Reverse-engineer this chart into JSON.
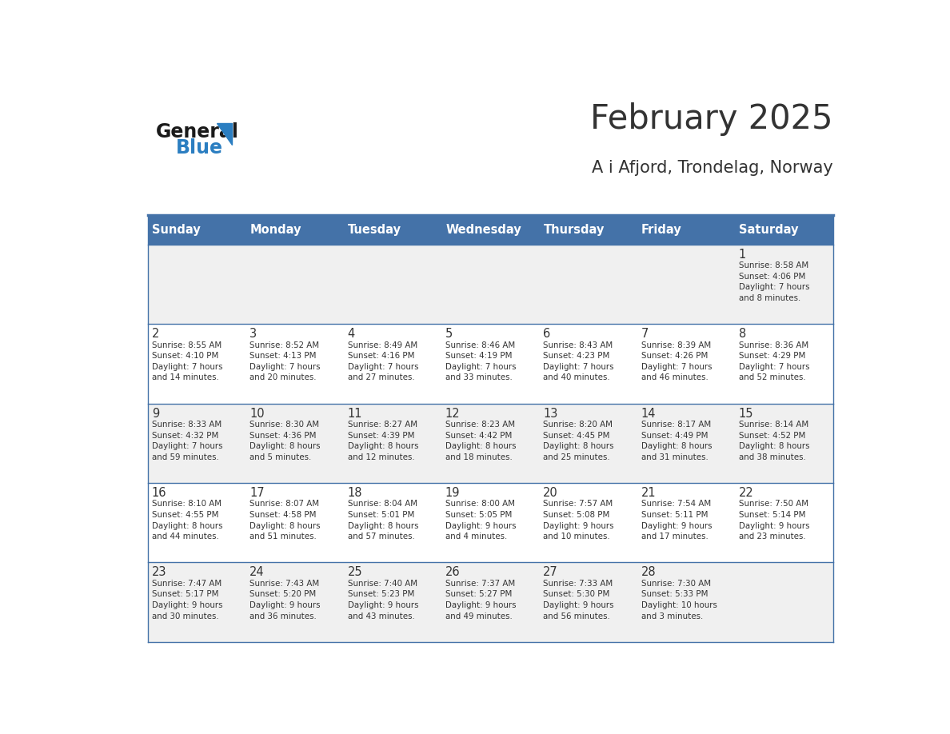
{
  "title": "February 2025",
  "subtitle": "A i Afjord, Trondelag, Norway",
  "days_of_week": [
    "Sunday",
    "Monday",
    "Tuesday",
    "Wednesday",
    "Thursday",
    "Friday",
    "Saturday"
  ],
  "header_bg": "#4472a8",
  "header_text": "#ffffff",
  "row_bg_odd": "#f0f0f0",
  "row_bg_even": "#ffffff",
  "separator_color": "#4472a8",
  "text_color": "#333333",
  "day_number_color": "#333333",
  "calendar_data": [
    [
      null,
      null,
      null,
      null,
      null,
      null,
      {
        "day": 1,
        "sunrise": "8:58 AM",
        "sunset": "4:06 PM",
        "daylight": "7 hours\nand 8 minutes."
      }
    ],
    [
      {
        "day": 2,
        "sunrise": "8:55 AM",
        "sunset": "4:10 PM",
        "daylight": "7 hours\nand 14 minutes."
      },
      {
        "day": 3,
        "sunrise": "8:52 AM",
        "sunset": "4:13 PM",
        "daylight": "7 hours\nand 20 minutes."
      },
      {
        "day": 4,
        "sunrise": "8:49 AM",
        "sunset": "4:16 PM",
        "daylight": "7 hours\nand 27 minutes."
      },
      {
        "day": 5,
        "sunrise": "8:46 AM",
        "sunset": "4:19 PM",
        "daylight": "7 hours\nand 33 minutes."
      },
      {
        "day": 6,
        "sunrise": "8:43 AM",
        "sunset": "4:23 PM",
        "daylight": "7 hours\nand 40 minutes."
      },
      {
        "day": 7,
        "sunrise": "8:39 AM",
        "sunset": "4:26 PM",
        "daylight": "7 hours\nand 46 minutes."
      },
      {
        "day": 8,
        "sunrise": "8:36 AM",
        "sunset": "4:29 PM",
        "daylight": "7 hours\nand 52 minutes."
      }
    ],
    [
      {
        "day": 9,
        "sunrise": "8:33 AM",
        "sunset": "4:32 PM",
        "daylight": "7 hours\nand 59 minutes."
      },
      {
        "day": 10,
        "sunrise": "8:30 AM",
        "sunset": "4:36 PM",
        "daylight": "8 hours\nand 5 minutes."
      },
      {
        "day": 11,
        "sunrise": "8:27 AM",
        "sunset": "4:39 PM",
        "daylight": "8 hours\nand 12 minutes."
      },
      {
        "day": 12,
        "sunrise": "8:23 AM",
        "sunset": "4:42 PM",
        "daylight": "8 hours\nand 18 minutes."
      },
      {
        "day": 13,
        "sunrise": "8:20 AM",
        "sunset": "4:45 PM",
        "daylight": "8 hours\nand 25 minutes."
      },
      {
        "day": 14,
        "sunrise": "8:17 AM",
        "sunset": "4:49 PM",
        "daylight": "8 hours\nand 31 minutes."
      },
      {
        "day": 15,
        "sunrise": "8:14 AM",
        "sunset": "4:52 PM",
        "daylight": "8 hours\nand 38 minutes."
      }
    ],
    [
      {
        "day": 16,
        "sunrise": "8:10 AM",
        "sunset": "4:55 PM",
        "daylight": "8 hours\nand 44 minutes."
      },
      {
        "day": 17,
        "sunrise": "8:07 AM",
        "sunset": "4:58 PM",
        "daylight": "8 hours\nand 51 minutes."
      },
      {
        "day": 18,
        "sunrise": "8:04 AM",
        "sunset": "5:01 PM",
        "daylight": "8 hours\nand 57 minutes."
      },
      {
        "day": 19,
        "sunrise": "8:00 AM",
        "sunset": "5:05 PM",
        "daylight": "9 hours\nand 4 minutes."
      },
      {
        "day": 20,
        "sunrise": "7:57 AM",
        "sunset": "5:08 PM",
        "daylight": "9 hours\nand 10 minutes."
      },
      {
        "day": 21,
        "sunrise": "7:54 AM",
        "sunset": "5:11 PM",
        "daylight": "9 hours\nand 17 minutes."
      },
      {
        "day": 22,
        "sunrise": "7:50 AM",
        "sunset": "5:14 PM",
        "daylight": "9 hours\nand 23 minutes."
      }
    ],
    [
      {
        "day": 23,
        "sunrise": "7:47 AM",
        "sunset": "5:17 PM",
        "daylight": "9 hours\nand 30 minutes."
      },
      {
        "day": 24,
        "sunrise": "7:43 AM",
        "sunset": "5:20 PM",
        "daylight": "9 hours\nand 36 minutes."
      },
      {
        "day": 25,
        "sunrise": "7:40 AM",
        "sunset": "5:23 PM",
        "daylight": "9 hours\nand 43 minutes."
      },
      {
        "day": 26,
        "sunrise": "7:37 AM",
        "sunset": "5:27 PM",
        "daylight": "9 hours\nand 49 minutes."
      },
      {
        "day": 27,
        "sunrise": "7:33 AM",
        "sunset": "5:30 PM",
        "daylight": "9 hours\nand 56 minutes."
      },
      {
        "day": 28,
        "sunrise": "7:30 AM",
        "sunset": "5:33 PM",
        "daylight": "10 hours\nand 3 minutes."
      },
      null
    ]
  ],
  "logo_text_general": "General",
  "logo_text_blue": "Blue",
  "logo_general_color": "#1a1a1a",
  "logo_blue_color": "#2b7ec1",
  "logo_triangle_color": "#2b7ec1"
}
